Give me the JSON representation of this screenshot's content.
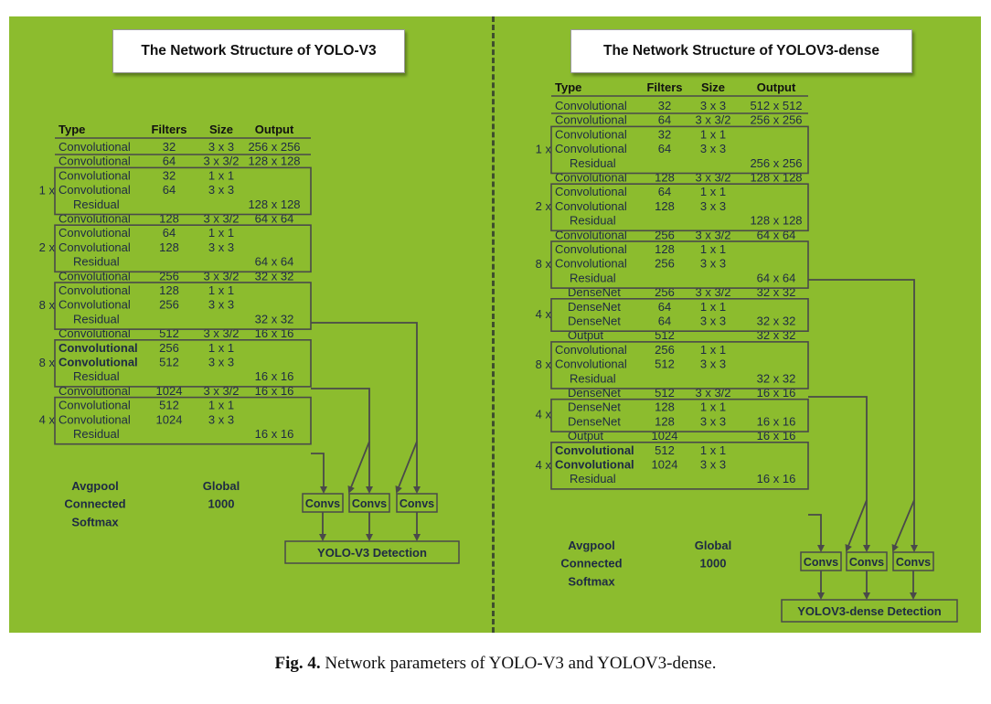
{
  "left": {
    "title": "The Network Structure of YOLO-V3",
    "header": [
      "Type",
      "Filters",
      "Size",
      "Output"
    ],
    "rows": [
      {
        "type": "Convolutional",
        "filters": "32",
        "size": "3 x 3",
        "output": "256 x 256"
      },
      {
        "type": "Convolutional",
        "filters": "64",
        "size": "3 x 3/2",
        "output": "128 x 128"
      },
      {
        "block": "1 x",
        "type": "Convolutional",
        "filters": "32",
        "size": "1 x 1",
        "output": ""
      },
      {
        "type": "Convolutional",
        "filters": "64",
        "size": "3 x 3",
        "output": ""
      },
      {
        "type": "Residual",
        "filters": "",
        "size": "",
        "output": "128 x 128"
      },
      {
        "type": "Convolutional",
        "filters": "128",
        "size": "3 x 3/2",
        "output": "64 x 64"
      },
      {
        "block": "2 x",
        "type": "Convolutional",
        "filters": "64",
        "size": "1 x 1",
        "output": ""
      },
      {
        "type": "Convolutional",
        "filters": "128",
        "size": "3 x 3",
        "output": ""
      },
      {
        "type": "Residual",
        "filters": "",
        "size": "",
        "output": "64 x 64"
      },
      {
        "type": "Convolutional",
        "filters": "256",
        "size": "3 x 3/2",
        "output": "32 x 32"
      },
      {
        "block": "8 x",
        "type": "Convolutional",
        "filters": "128",
        "size": "1 x 1",
        "output": ""
      },
      {
        "type": "Convolutional",
        "filters": "256",
        "size": "3 x 3",
        "output": ""
      },
      {
        "type": "Residual",
        "filters": "",
        "size": "",
        "output": "32 x 32"
      },
      {
        "type": "Convolutional",
        "filters": "512",
        "size": "3 x 3/2",
        "output": "16 x 16"
      },
      {
        "block": "8 x",
        "type": "Convolutional",
        "filters": "256",
        "size": "1 x 1",
        "output": ""
      },
      {
        "type": "Convolutional",
        "filters": "512",
        "size": "3 x 3",
        "output": ""
      },
      {
        "type": "Residual",
        "filters": "",
        "size": "",
        "output": "16 x 16"
      },
      {
        "type": "Convolutional",
        "filters": "1024",
        "size": "3 x 3/2",
        "output": "16 x 16"
      },
      {
        "block": "4 x",
        "type": "Convolutional",
        "filters": "512",
        "size": "1 x 1",
        "output": ""
      },
      {
        "type": "Convolutional",
        "filters": "1024",
        "size": "3 x 3",
        "output": ""
      },
      {
        "type": "Residual",
        "filters": "",
        "size": "",
        "output": "16 x 16"
      }
    ],
    "tail": [
      {
        "type": "Avgpool",
        "size": "Global"
      },
      {
        "type": "Connected",
        "size": "1000"
      },
      {
        "type": "Softmax",
        "size": ""
      }
    ],
    "convs": [
      "Convs",
      "Convs",
      "Convs"
    ],
    "detection": "YOLO-V3 Detection"
  },
  "right": {
    "title": "The Network Structure of YOLOV3-dense",
    "header": [
      "Type",
      "Filters",
      "Size",
      "Output"
    ],
    "rows": [
      {
        "type": "Convolutional",
        "filters": "32",
        "size": "3 x 3",
        "output": "512 x 512"
      },
      {
        "type": "Convolutional",
        "filters": "64",
        "size": "3 x 3/2",
        "output": "256 x 256"
      },
      {
        "block": "1 x",
        "type": "Convolutional",
        "filters": "32",
        "size": "1 x 1",
        "output": ""
      },
      {
        "type": "Convolutional",
        "filters": "64",
        "size": "3 x 3",
        "output": ""
      },
      {
        "type": "Residual",
        "filters": "",
        "size": "",
        "output": "256 x 256"
      },
      {
        "type": "Convolutional",
        "filters": "128",
        "size": "3 x 3/2",
        "output": "128 x 128"
      },
      {
        "block": "2 x",
        "type": "Convolutional",
        "filters": "64",
        "size": "1 x 1",
        "output": ""
      },
      {
        "type": "Convolutional",
        "filters": "128",
        "size": "3 x 3",
        "output": ""
      },
      {
        "type": "Residual",
        "filters": "",
        "size": "",
        "output": "128 x 128"
      },
      {
        "type": "Convolutional",
        "filters": "256",
        "size": "3 x 3/2",
        "output": "64 x 64"
      },
      {
        "block": "8 x",
        "type": "Convolutional",
        "filters": "128",
        "size": "1 x 1",
        "output": ""
      },
      {
        "type": "Convolutional",
        "filters": "256",
        "size": "3 x 3",
        "output": ""
      },
      {
        "type": "Residual",
        "filters": "",
        "size": "",
        "output": "64 x 64"
      },
      {
        "type": "DenseNet",
        "filters": "256",
        "size": "3 x 3/2",
        "output": "32 x 32"
      },
      {
        "block": "4 x",
        "type": "DenseNet",
        "filters": "64",
        "size": "1 x 1",
        "output": ""
      },
      {
        "type": "DenseNet",
        "filters": "64",
        "size": "3 x 3",
        "output": "32 x 32"
      },
      {
        "type": "Output",
        "filters": "512",
        "size": "",
        "output": "32 x 32"
      },
      {
        "block": "8 x",
        "type": "Convolutional",
        "filters": "256",
        "size": "1 x 1",
        "output": ""
      },
      {
        "type": "Convolutional",
        "filters": "512",
        "size": "3 x 3",
        "output": ""
      },
      {
        "type": "Residual",
        "filters": "",
        "size": "",
        "output": "32 x 32"
      },
      {
        "type": "DenseNet",
        "filters": "512",
        "size": "3 x 3/2",
        "output": "16 x 16"
      },
      {
        "block": "4 x",
        "type": "DenseNet",
        "filters": "128",
        "size": "1 x 1",
        "output": ""
      },
      {
        "type": "DenseNet",
        "filters": "128",
        "size": "3 x 3",
        "output": "16 x 16"
      },
      {
        "type": "Output",
        "filters": "1024",
        "size": "",
        "output": "16 x 16"
      },
      {
        "block": "4 x",
        "type": "Convolutional",
        "filters": "512",
        "size": "1 x 1",
        "output": ""
      },
      {
        "type": "Convolutional",
        "filters": "1024",
        "size": "3 x 3",
        "output": ""
      },
      {
        "type": "Residual",
        "filters": "",
        "size": "",
        "output": "16 x 16"
      }
    ],
    "tail": [
      {
        "type": "Avgpool",
        "size": "Global"
      },
      {
        "type": "Connected",
        "size": "1000"
      },
      {
        "type": "Softmax",
        "size": ""
      }
    ],
    "convs": [
      "Convs",
      "Convs",
      "Convs"
    ],
    "detection": "YOLOV3-dense Detection"
  },
  "caption": {
    "label": "Fig. 4.",
    "text": " Network parameters of YOLO-V3 and YOLOV3-dense."
  },
  "colors": {
    "panel_background": "#8cbc2e",
    "divider": "#3f4f2e",
    "text": "#1e2a44"
  }
}
